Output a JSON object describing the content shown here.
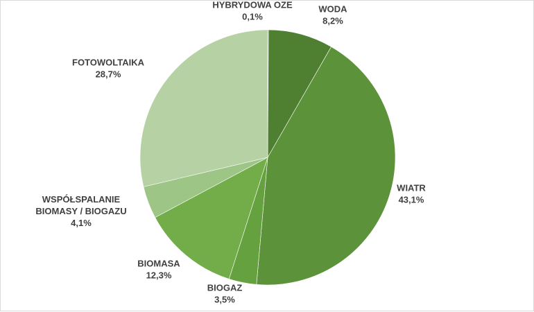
{
  "chart_data": {
    "type": "pie",
    "title": "",
    "start_angle_deg": 0,
    "direction": "clockwise",
    "slices": [
      {
        "name": "HYBRYDOWA OZE",
        "label_lines": [
          "HYBRYDOWA OZE"
        ],
        "value": 0.1,
        "value_label": "0,1%",
        "color": "#4a7a2c"
      },
      {
        "name": "WODA",
        "label_lines": [
          "WODA"
        ],
        "value": 8.2,
        "value_label": "8,2%",
        "color": "#4f7f31"
      },
      {
        "name": "WIATR",
        "label_lines": [
          "WIATR"
        ],
        "value": 43.1,
        "value_label": "43,1%",
        "color": "#5c9239"
      },
      {
        "name": "BIOGAZ",
        "label_lines": [
          "BIOGAZ"
        ],
        "value": 3.5,
        "value_label": "3,5%",
        "color": "#66a13f"
      },
      {
        "name": "BIOMASA",
        "label_lines": [
          "BIOMASA"
        ],
        "value": 12.3,
        "value_label": "12,3%",
        "color": "#72ad4a"
      },
      {
        "name": "WSPÓŁSPALANIE BIOMASY / BIOGAZU",
        "label_lines": [
          "WSPÓŁSPALANIE",
          "BIOMASY / BIOGAZU"
        ],
        "value": 4.1,
        "value_label": "4,1%",
        "color": "#9cc586"
      },
      {
        "name": "FOTOWOLTAIKA",
        "label_lines": [
          "FOTOWOLTAIKA"
        ],
        "value": 28.7,
        "value_label": "28,7%",
        "color": "#b6d1a3"
      }
    ]
  }
}
